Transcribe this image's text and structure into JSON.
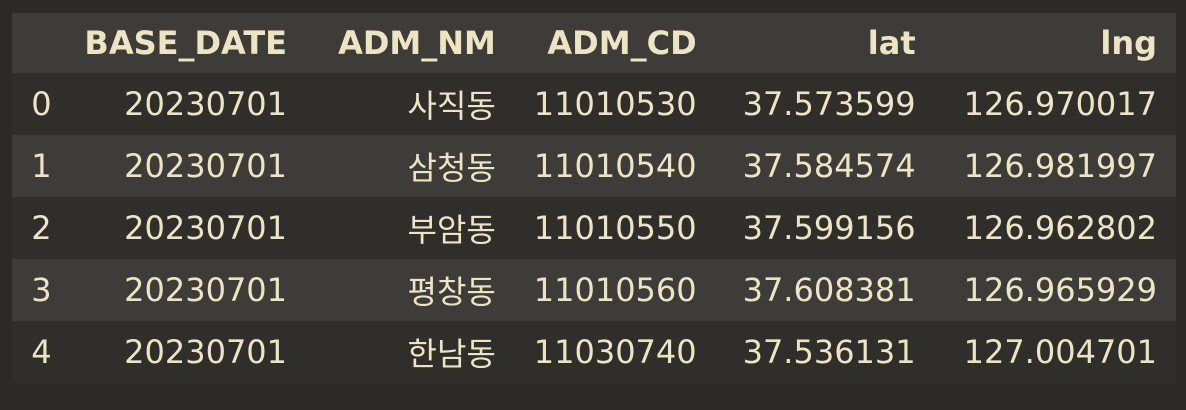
{
  "table": {
    "columns": [
      "",
      "BASE_DATE",
      "ADM_NM",
      "ADM_CD",
      "lat",
      "lng"
    ],
    "rows": [
      {
        "index": "0",
        "BASE_DATE": "20230701",
        "ADM_NM": "사직동",
        "ADM_CD": "11010530",
        "lat": "37.573599",
        "lng": "126.970017"
      },
      {
        "index": "1",
        "BASE_DATE": "20230701",
        "ADM_NM": "삼청동",
        "ADM_CD": "11010540",
        "lat": "37.584574",
        "lng": "126.981997"
      },
      {
        "index": "2",
        "BASE_DATE": "20230701",
        "ADM_NM": "부암동",
        "ADM_CD": "11010550",
        "lat": "37.599156",
        "lng": "126.962802"
      },
      {
        "index": "3",
        "BASE_DATE": "20230701",
        "ADM_NM": "평창동",
        "ADM_CD": "11010560",
        "lat": "37.608381",
        "lng": "126.965929"
      },
      {
        "index": "4",
        "BASE_DATE": "20230701",
        "ADM_NM": "한남동",
        "ADM_CD": "11030740",
        "lat": "37.536131",
        "lng": "127.004701"
      }
    ]
  }
}
